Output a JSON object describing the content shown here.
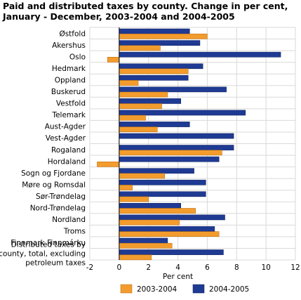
{
  "chart_data": {
    "type": "bar",
    "orientation": "horizontal",
    "title": "Paid and distributed taxes by county. Change in per cent, January - December, 2003-2004 and 2004-2005",
    "xlabel": "Per cent",
    "ylabel": "",
    "xlim": [
      -2,
      12
    ],
    "xticks": [
      -2,
      0,
      2,
      4,
      6,
      8,
      10,
      12
    ],
    "grid": true,
    "legend_position": "bottom",
    "categories": [
      "Østfold",
      "Akershus",
      "Oslo",
      "Hedmark",
      "Oppland",
      "Buskerud",
      "Vestfold",
      "Telemark",
      "Aust-Agder",
      "Vest-Agder",
      "Rogaland",
      "Hordaland",
      "Sogn og Fjordane",
      "Møre og Romsdal",
      "Sør-Trøndelag",
      "Nord-Trøndelag",
      "Nordland",
      "Troms",
      "Finnmark Finnmárku",
      "Distributed taxes by county, total, excluding petroleum taxes"
    ],
    "series": [
      {
        "name": "2003-2004",
        "color": "#f39c2e",
        "values": [
          6.0,
          2.8,
          -0.8,
          4.7,
          1.3,
          3.3,
          2.9,
          1.8,
          2.6,
          0.0,
          7.0,
          -1.5,
          3.1,
          0.9,
          2.0,
          5.2,
          4.1,
          6.8,
          3.6,
          2.2
        ]
      },
      {
        "name": "2004-2005",
        "color": "#1f3a93",
        "values": [
          4.8,
          5.5,
          11.0,
          5.7,
          4.7,
          7.3,
          4.2,
          8.6,
          4.8,
          7.8,
          7.8,
          6.8,
          5.1,
          5.9,
          5.9,
          4.2,
          7.2,
          6.5,
          3.3,
          7.1
        ]
      }
    ]
  }
}
